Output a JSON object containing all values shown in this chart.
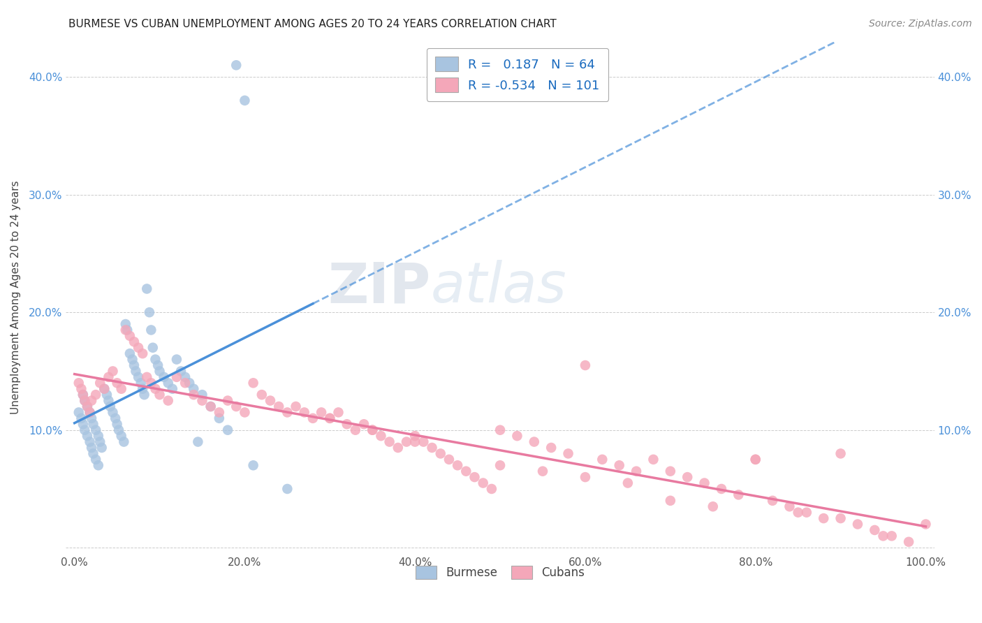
{
  "title": "BURMESE VS CUBAN UNEMPLOYMENT AMONG AGES 20 TO 24 YEARS CORRELATION CHART",
  "source": "Source: ZipAtlas.com",
  "ylabel": "Unemployment Among Ages 20 to 24 years",
  "xlim": [
    -0.01,
    1.01
  ],
  "ylim": [
    -0.005,
    0.43
  ],
  "x_ticks": [
    0.0,
    0.2,
    0.4,
    0.6,
    0.8,
    1.0
  ],
  "x_tick_labels": [
    "0.0%",
    "20.0%",
    "40.0%",
    "60.0%",
    "80.0%",
    "100.0%"
  ],
  "y_ticks": [
    0.0,
    0.1,
    0.2,
    0.3,
    0.4
  ],
  "y_tick_labels": [
    "",
    "10.0%",
    "20.0%",
    "30.0%",
    "40.0%"
  ],
  "burmese_color": "#a8c4e0",
  "cuban_color": "#f4a7b9",
  "burmese_line_color": "#4a90d9",
  "cuban_line_color": "#e87aa0",
  "legend_burmese_R": "0.187",
  "legend_burmese_N": "64",
  "legend_cuban_R": "-0.534",
  "legend_cuban_N": "101",
  "watermark_zip": "ZIP",
  "watermark_atlas": "atlas",
  "background_color": "#ffffff",
  "burmese_x": [
    0.005,
    0.008,
    0.01,
    0.012,
    0.015,
    0.018,
    0.02,
    0.022,
    0.025,
    0.028,
    0.01,
    0.012,
    0.015,
    0.018,
    0.02,
    0.022,
    0.025,
    0.028,
    0.03,
    0.032,
    0.035,
    0.038,
    0.04,
    0.042,
    0.045,
    0.048,
    0.05,
    0.052,
    0.055,
    0.058,
    0.06,
    0.062,
    0.065,
    0.068,
    0.07,
    0.072,
    0.075,
    0.078,
    0.08,
    0.082,
    0.085,
    0.088,
    0.09,
    0.092,
    0.095,
    0.098,
    0.1,
    0.105,
    0.11,
    0.115,
    0.12,
    0.125,
    0.13,
    0.135,
    0.14,
    0.145,
    0.15,
    0.16,
    0.17,
    0.18,
    0.19,
    0.2,
    0.21,
    0.25
  ],
  "burmese_y": [
    0.115,
    0.11,
    0.105,
    0.1,
    0.095,
    0.09,
    0.085,
    0.08,
    0.075,
    0.07,
    0.13,
    0.125,
    0.12,
    0.115,
    0.11,
    0.105,
    0.1,
    0.095,
    0.09,
    0.085,
    0.135,
    0.13,
    0.125,
    0.12,
    0.115,
    0.11,
    0.105,
    0.1,
    0.095,
    0.09,
    0.19,
    0.185,
    0.165,
    0.16,
    0.155,
    0.15,
    0.145,
    0.14,
    0.135,
    0.13,
    0.22,
    0.2,
    0.185,
    0.17,
    0.16,
    0.155,
    0.15,
    0.145,
    0.14,
    0.135,
    0.16,
    0.15,
    0.145,
    0.14,
    0.135,
    0.09,
    0.13,
    0.12,
    0.11,
    0.1,
    0.41,
    0.38,
    0.07,
    0.05
  ],
  "cuban_x": [
    0.005,
    0.008,
    0.01,
    0.012,
    0.015,
    0.018,
    0.02,
    0.025,
    0.03,
    0.035,
    0.04,
    0.045,
    0.05,
    0.055,
    0.06,
    0.065,
    0.07,
    0.075,
    0.08,
    0.085,
    0.09,
    0.095,
    0.1,
    0.11,
    0.12,
    0.13,
    0.14,
    0.15,
    0.16,
    0.17,
    0.18,
    0.19,
    0.2,
    0.21,
    0.22,
    0.23,
    0.24,
    0.25,
    0.26,
    0.27,
    0.28,
    0.29,
    0.3,
    0.31,
    0.32,
    0.33,
    0.34,
    0.35,
    0.36,
    0.37,
    0.38,
    0.39,
    0.4,
    0.41,
    0.42,
    0.43,
    0.44,
    0.45,
    0.46,
    0.47,
    0.48,
    0.49,
    0.5,
    0.52,
    0.54,
    0.56,
    0.58,
    0.6,
    0.62,
    0.64,
    0.66,
    0.68,
    0.7,
    0.72,
    0.74,
    0.76,
    0.78,
    0.8,
    0.82,
    0.84,
    0.86,
    0.88,
    0.9,
    0.92,
    0.94,
    0.96,
    0.98,
    1.0,
    0.5,
    0.55,
    0.6,
    0.65,
    0.7,
    0.75,
    0.8,
    0.85,
    0.9,
    0.95,
    0.3,
    0.35,
    0.4
  ],
  "cuban_y": [
    0.14,
    0.135,
    0.13,
    0.125,
    0.12,
    0.115,
    0.125,
    0.13,
    0.14,
    0.135,
    0.145,
    0.15,
    0.14,
    0.135,
    0.185,
    0.18,
    0.175,
    0.17,
    0.165,
    0.145,
    0.14,
    0.135,
    0.13,
    0.125,
    0.145,
    0.14,
    0.13,
    0.125,
    0.12,
    0.115,
    0.125,
    0.12,
    0.115,
    0.14,
    0.13,
    0.125,
    0.12,
    0.115,
    0.12,
    0.115,
    0.11,
    0.115,
    0.11,
    0.115,
    0.105,
    0.1,
    0.105,
    0.1,
    0.095,
    0.09,
    0.085,
    0.09,
    0.095,
    0.09,
    0.085,
    0.08,
    0.075,
    0.07,
    0.065,
    0.06,
    0.055,
    0.05,
    0.1,
    0.095,
    0.09,
    0.085,
    0.08,
    0.155,
    0.075,
    0.07,
    0.065,
    0.075,
    0.065,
    0.06,
    0.055,
    0.05,
    0.045,
    0.075,
    0.04,
    0.035,
    0.03,
    0.025,
    0.08,
    0.02,
    0.015,
    0.01,
    0.005,
    0.02,
    0.07,
    0.065,
    0.06,
    0.055,
    0.04,
    0.035,
    0.075,
    0.03,
    0.025,
    0.01,
    0.11,
    0.1,
    0.09
  ]
}
